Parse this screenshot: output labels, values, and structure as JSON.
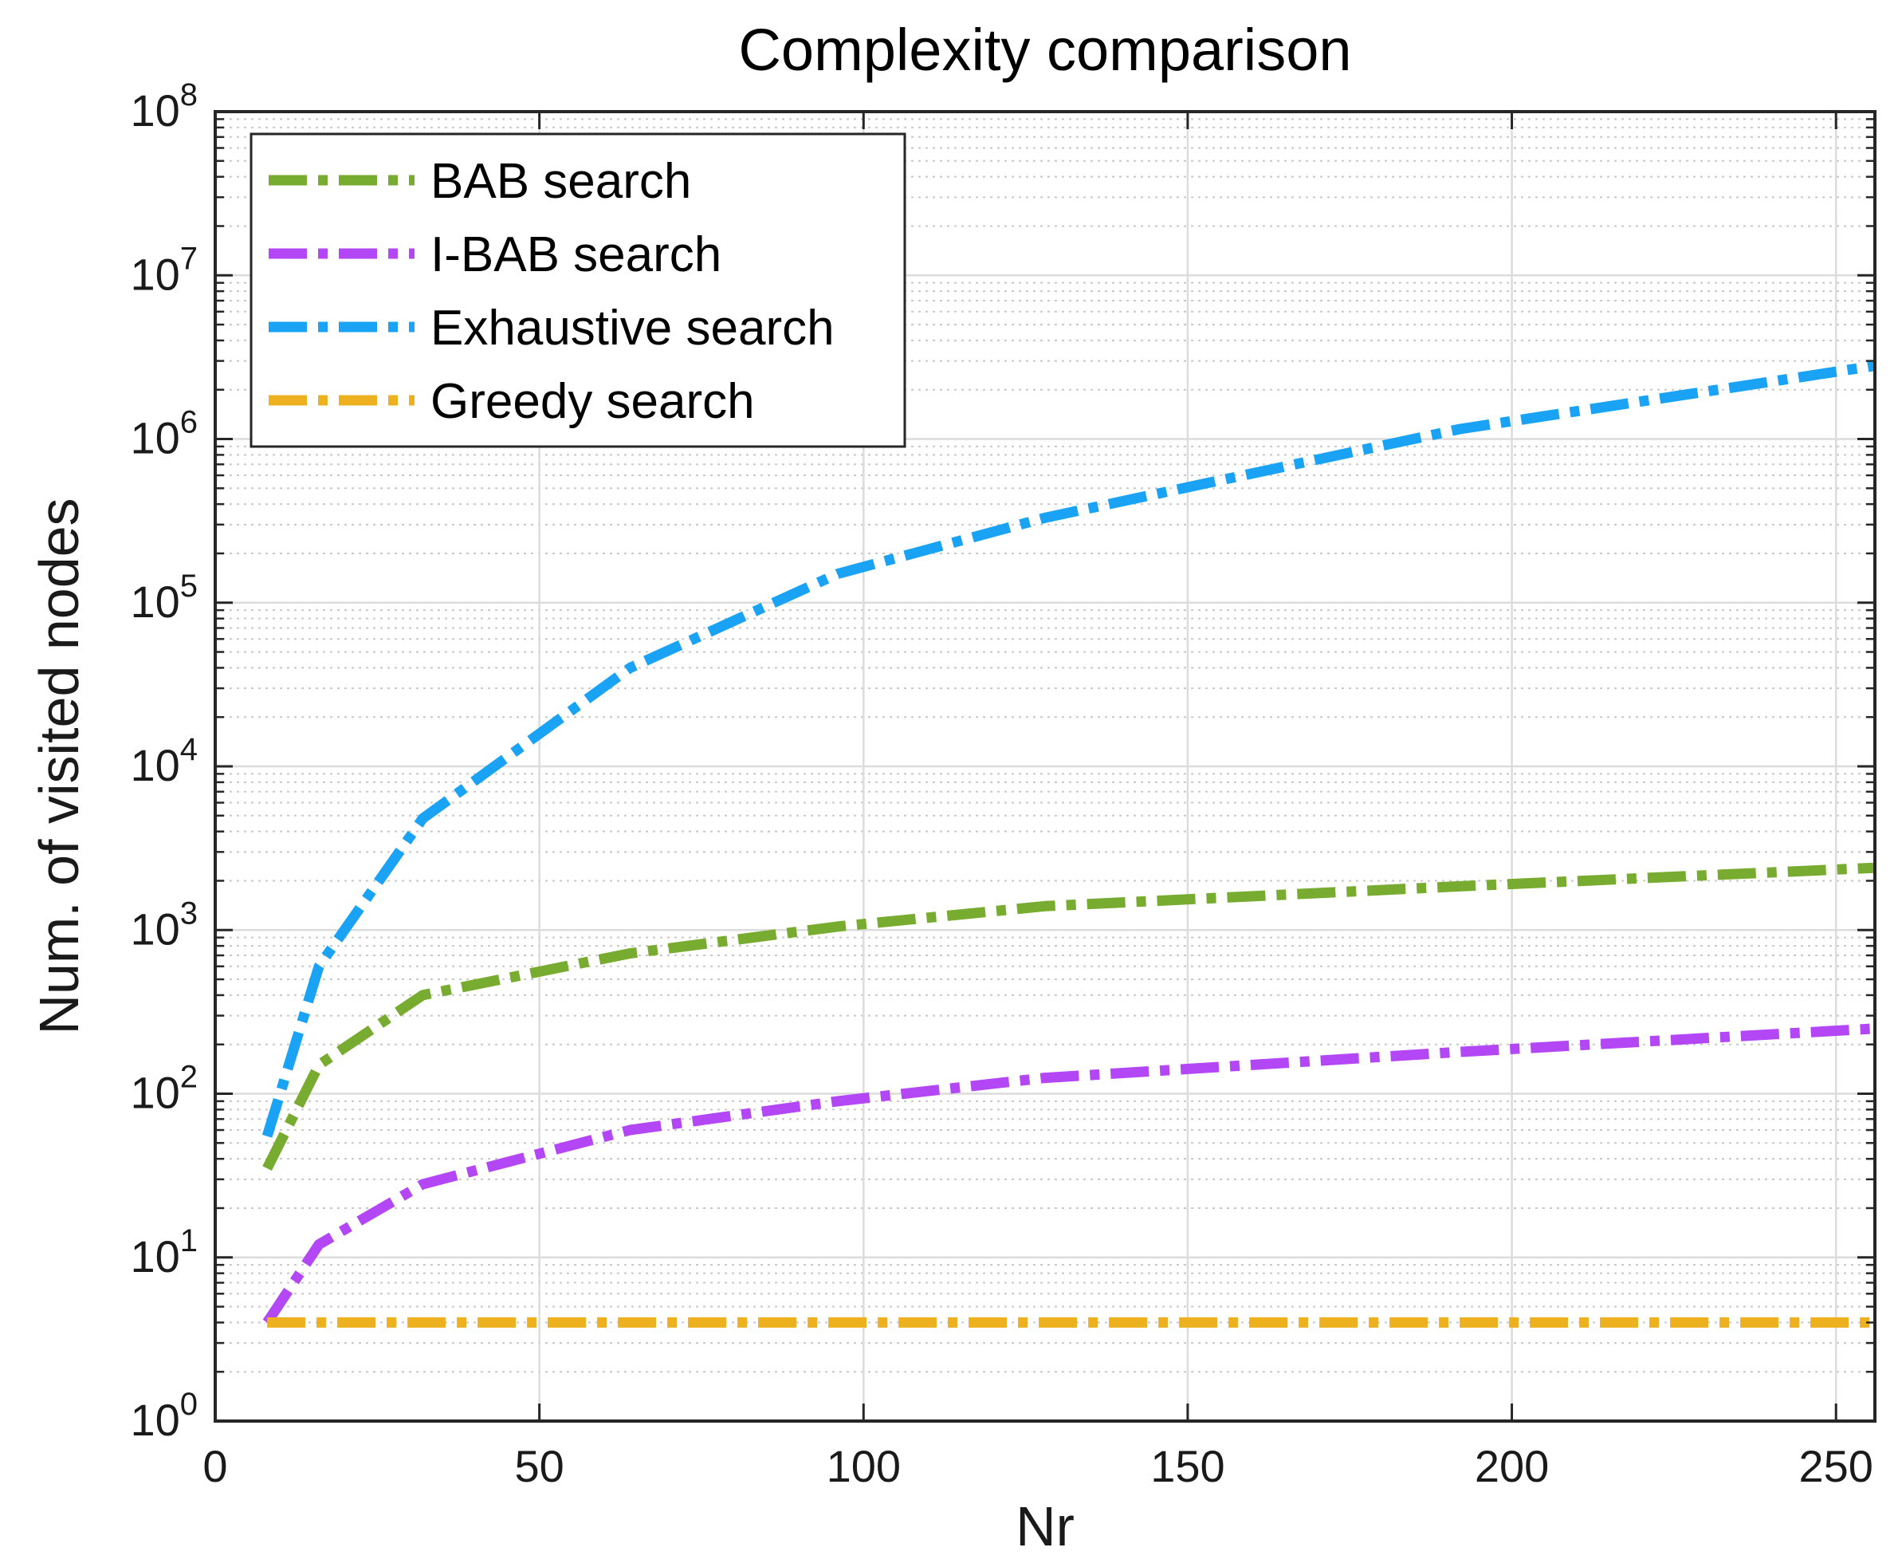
{
  "chart_data": {
    "type": "line",
    "title": "Complexity comparison",
    "xlabel": "Nr",
    "ylabel": "Num. of visited nodes",
    "xlim": [
      0,
      256
    ],
    "ylim": [
      1,
      100000000
    ],
    "yscale": "log",
    "xticks": [
      0,
      50,
      100,
      150,
      200,
      250
    ],
    "yticks": [
      {
        "base": "10",
        "exp": "0",
        "value": 1
      },
      {
        "base": "10",
        "exp": "1",
        "value": 10
      },
      {
        "base": "10",
        "exp": "2",
        "value": 100
      },
      {
        "base": "10",
        "exp": "3",
        "value": 1000
      },
      {
        "base": "10",
        "exp": "4",
        "value": 10000
      },
      {
        "base": "10",
        "exp": "5",
        "value": 100000
      },
      {
        "base": "10",
        "exp": "6",
        "value": 1000000
      },
      {
        "base": "10",
        "exp": "7",
        "value": 10000000
      },
      {
        "base": "10",
        "exp": "8",
        "value": 100000000
      }
    ],
    "grid": true,
    "minor_grid": true,
    "legend_position": "top-left",
    "x": [
      8,
      16,
      32,
      64,
      96,
      128,
      192,
      256
    ],
    "series": [
      {
        "name": "BAB search",
        "color": "#77ac30",
        "values": [
          35,
          150,
          400,
          720,
          1050,
          1400,
          1850,
          2400
        ]
      },
      {
        "name": "I-BAB search",
        "color": "#b347f5",
        "values": [
          4,
          12,
          28,
          60,
          90,
          125,
          180,
          250
        ]
      },
      {
        "name": "Exhaustive search",
        "color": "#1aa3f5",
        "values": [
          55,
          600,
          4800,
          40000,
          150000,
          330000,
          1150000,
          2800000
        ]
      },
      {
        "name": "Greedy search",
        "color": "#edb120",
        "values": [
          4,
          4,
          4,
          4,
          4,
          4,
          4,
          4
        ]
      }
    ]
  }
}
